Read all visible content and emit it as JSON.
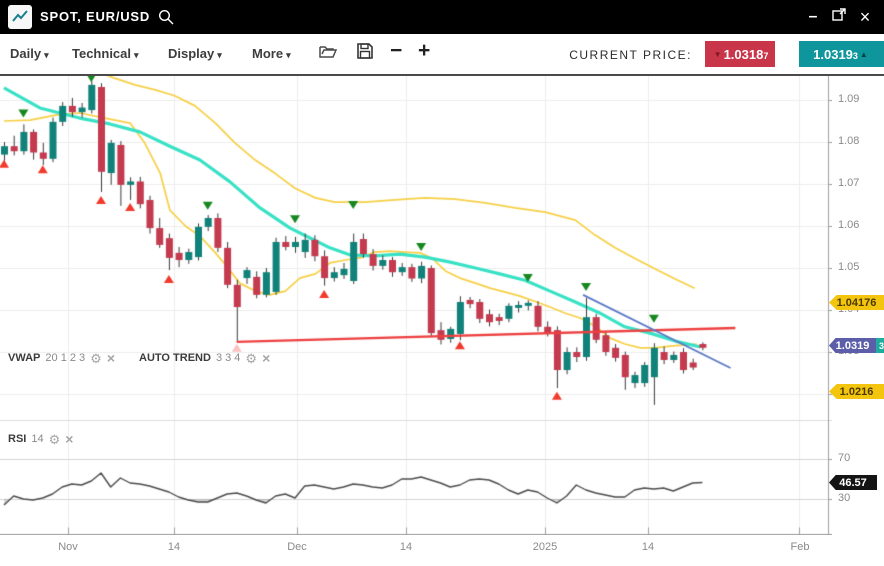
{
  "window": {
    "title": "SPOT, EUR/USD",
    "controls": {
      "minimize": "–",
      "close": "×"
    }
  },
  "ui": {
    "icons": {
      "caret_down": "▾",
      "settings": "⚙",
      "close_small": "×",
      "arrow_down": "▼",
      "arrow_up": "▲"
    },
    "colors": {
      "candle_up": "#10827a",
      "candle_down": "#c43a4e",
      "wick": "#3a3a3a",
      "vwap": "#38e1c5",
      "band": "#f6cf45",
      "trend_red": "#ee4040",
      "trend_blue": "#5b78c7",
      "marker_green": "#17871f",
      "marker_red": "#f2392c",
      "rsi_line": "#4a4a4a",
      "grid": "#ededed",
      "grid_rsi": "#d4d4d4",
      "axis": "#9e9e9e",
      "badge_yellow": "#f3c50f",
      "badge_purple": "#5c5ea9",
      "badge_teal": "#1fae9e",
      "badge_black": "#141414",
      "bid_bg": "#c9364a",
      "ask_bg": "#0f969c"
    }
  },
  "toolbar": {
    "menus": [
      {
        "label": "Daily"
      },
      {
        "label": "Technical"
      },
      {
        "label": "Display"
      },
      {
        "label": "More"
      }
    ],
    "zoom_out": "−",
    "zoom_in": "+",
    "current_price_label": "CURRENT PRICE:",
    "bid": {
      "value": "1.0318",
      "sub": "7"
    },
    "ask": {
      "value": "1.0319",
      "sub": "3"
    }
  },
  "indicators": {
    "vwap": {
      "name": "VWAP",
      "params": "20 1 2 3"
    },
    "autotrend": {
      "name": "AUTO TREND",
      "params": "3 3 4"
    },
    "rsi": {
      "name": "RSI",
      "params": "14"
    }
  },
  "axis_badges": {
    "upper": "1.04176",
    "current": "1.0319",
    "current_sub": "3",
    "lower": "1.0216",
    "rsi": "46.57"
  },
  "chart_data": {
    "type": "candlestick",
    "symbol": "SPOT, EUR/USD",
    "timeframe": "Daily",
    "price_axis": {
      "min": 1.014,
      "max": 1.0948,
      "ticks": [
        1.09,
        1.08,
        1.07,
        1.06,
        1.05,
        1.04,
        1.03,
        1.02
      ],
      "tick_labels": [
        "1.09",
        "1.08",
        "1.07",
        "1.06",
        "1.05",
        "1.04",
        "1.03",
        "1.02"
      ]
    },
    "time_ticks": [
      {
        "label": "Nov",
        "i": 6.6
      },
      {
        "label": "14",
        "i": 17.5
      },
      {
        "label": "Dec",
        "i": 30.2
      },
      {
        "label": "14",
        "i": 41.4
      },
      {
        "label": "2025",
        "i": 55.8
      },
      {
        "label": "14",
        "i": 66.4
      },
      {
        "label": "Feb",
        "i": 82
      }
    ],
    "candles": [
      [
        1.077,
        1.08,
        1.0755,
        1.079
      ],
      [
        1.079,
        1.0815,
        1.0768,
        1.0778
      ],
      [
        1.0778,
        1.0842,
        1.077,
        1.0824
      ],
      [
        1.0824,
        1.083,
        1.0758,
        1.0775
      ],
      [
        1.0775,
        1.0798,
        1.0745,
        1.076
      ],
      [
        1.076,
        1.0858,
        1.0752,
        1.0848
      ],
      [
        1.0848,
        1.0895,
        1.0838,
        1.0886
      ],
      [
        1.0886,
        1.0905,
        1.086,
        1.0871
      ],
      [
        1.0871,
        1.0893,
        1.0858,
        1.0882
      ],
      [
        1.0876,
        1.0945,
        1.0868,
        1.0936
      ],
      [
        1.0931,
        1.094,
        1.0681,
        1.0729
      ],
      [
        1.0726,
        1.0805,
        1.0698,
        1.0798
      ],
      [
        1.0793,
        1.0802,
        1.0648,
        1.0698
      ],
      [
        1.0698,
        1.0716,
        1.0662,
        1.0706
      ],
      [
        1.0706,
        1.0717,
        1.0642,
        1.0652
      ],
      [
        1.0662,
        1.0672,
        1.0582,
        1.0595
      ],
      [
        1.0595,
        1.0619,
        1.0548,
        1.0555
      ],
      [
        1.0571,
        1.0582,
        1.0495,
        1.0524
      ],
      [
        1.0536,
        1.055,
        1.0502,
        1.0519
      ],
      [
        1.0519,
        1.0546,
        1.051,
        1.0538
      ],
      [
        1.0526,
        1.0606,
        1.0518,
        1.0598
      ],
      [
        1.0598,
        1.0626,
        1.0588,
        1.0619
      ],
      [
        1.0619,
        1.063,
        1.0538,
        1.0548
      ],
      [
        1.0548,
        1.0562,
        1.0452,
        1.046
      ],
      [
        1.046,
        1.0472,
        1.0324,
        1.0407
      ],
      [
        1.0476,
        1.0502,
        1.0462,
        1.0495
      ],
      [
        1.0479,
        1.0492,
        1.0428,
        1.0436
      ],
      [
        1.0436,
        1.05,
        1.043,
        1.049
      ],
      [
        1.0443,
        1.0572,
        1.0436,
        1.0562
      ],
      [
        1.0562,
        1.0576,
        1.0542,
        1.055
      ],
      [
        1.055,
        1.0574,
        1.0536,
        1.0562
      ],
      [
        1.0538,
        1.0582,
        1.0524,
        1.0567
      ],
      [
        1.0567,
        1.0578,
        1.0516,
        1.0528
      ],
      [
        1.0528,
        1.0542,
        1.0458,
        1.0476
      ],
      [
        1.0476,
        1.0502,
        1.0468,
        1.049
      ],
      [
        1.0483,
        1.0512,
        1.0474,
        1.0498
      ],
      [
        1.0469,
        1.0582,
        1.0462,
        1.0562
      ],
      [
        1.0569,
        1.0582,
        1.0524,
        1.0533
      ],
      [
        1.0533,
        1.0545,
        1.0494,
        1.0505
      ],
      [
        1.0505,
        1.053,
        1.0496,
        1.0519
      ],
      [
        1.0519,
        1.0526,
        1.0479,
        1.049
      ],
      [
        1.049,
        1.0512,
        1.0481,
        1.0502
      ],
      [
        1.0502,
        1.051,
        1.0467,
        1.0475
      ],
      [
        1.0475,
        1.0515,
        1.0464,
        1.0505
      ],
      [
        1.05,
        1.0506,
        1.0338,
        1.0345
      ],
      [
        1.0352,
        1.0371,
        1.0318,
        1.0329
      ],
      [
        1.0331,
        1.036,
        1.0322,
        1.0355
      ],
      [
        1.0343,
        1.0433,
        1.0328,
        1.0419
      ],
      [
        1.0424,
        1.0431,
        1.0404,
        1.0414
      ],
      [
        1.0419,
        1.0426,
        1.0369,
        1.0379
      ],
      [
        1.039,
        1.0401,
        1.0361,
        1.0371
      ],
      [
        1.0383,
        1.0391,
        1.0364,
        1.0374
      ],
      [
        1.0379,
        1.0416,
        1.0371,
        1.041
      ],
      [
        1.0405,
        1.0421,
        1.0394,
        1.0412
      ],
      [
        1.041,
        1.0423,
        1.0399,
        1.0417
      ],
      [
        1.041,
        1.0421,
        1.0349,
        1.036
      ],
      [
        1.036,
        1.0373,
        1.0337,
        1.0345
      ],
      [
        1.0352,
        1.0361,
        1.0214,
        1.0257
      ],
      [
        1.0257,
        1.0311,
        1.0247,
        1.03
      ],
      [
        1.03,
        1.0311,
        1.0276,
        1.0288
      ],
      [
        1.0288,
        1.0429,
        1.0279,
        1.0383
      ],
      [
        1.0383,
        1.0391,
        1.0321,
        1.0329
      ],
      [
        1.034,
        1.0349,
        1.0291,
        1.03
      ],
      [
        1.031,
        1.0319,
        1.0277,
        1.0286
      ],
      [
        1.0293,
        1.0301,
        1.021,
        1.024
      ],
      [
        1.0226,
        1.0253,
        1.0214,
        1.0245
      ],
      [
        1.0226,
        1.0276,
        1.0217,
        1.0269
      ],
      [
        1.024,
        1.0321,
        1.0174,
        1.031
      ],
      [
        1.03,
        1.0313,
        1.0271,
        1.0281
      ],
      [
        1.0281,
        1.0301,
        1.0274,
        1.0293
      ],
      [
        1.03,
        1.0309,
        1.0249,
        1.0257
      ],
      [
        1.0275,
        1.0284,
        1.0257,
        1.0263
      ],
      [
        1.0319,
        1.0323,
        1.0304,
        1.031
      ]
    ],
    "markers": {
      "green": [
        [
          2,
          1.0868
        ],
        [
          9,
          1.0952
        ],
        [
          21,
          1.0648
        ],
        [
          30,
          1.0616
        ],
        [
          36,
          1.065
        ],
        [
          43,
          1.055
        ],
        [
          54,
          1.0476
        ],
        [
          60,
          1.0455
        ],
        [
          67,
          1.0379
        ]
      ],
      "red": [
        [
          0,
          1.0748
        ],
        [
          4,
          1.0735
        ],
        [
          10,
          1.0662
        ],
        [
          13,
          1.0645
        ],
        [
          17,
          1.0474
        ],
        [
          33,
          1.0438
        ],
        [
          47,
          1.0316
        ],
        [
          57,
          1.0196
        ]
      ],
      "red_faded": [
        [
          24,
          1.031
        ]
      ]
    },
    "vwap_line": [
      [
        0,
        1.0929
      ],
      [
        3.7,
        1.0881
      ],
      [
        7.8,
        1.0857
      ],
      [
        10.9,
        1.0843
      ],
      [
        14,
        1.0824
      ],
      [
        17.1,
        1.079
      ],
      [
        20.2,
        1.0757
      ],
      [
        23.3,
        1.0705
      ],
      [
        26.4,
        1.0643
      ],
      [
        29.5,
        1.0595
      ],
      [
        31.5,
        1.0572
      ],
      [
        33.6,
        1.0548
      ],
      [
        35.7,
        1.0531
      ],
      [
        38.2,
        1.0529
      ],
      [
        40.8,
        1.0533
      ],
      [
        43.4,
        1.0526
      ],
      [
        46,
        1.0514
      ],
      [
        48.6,
        1.05
      ],
      [
        51.1,
        1.0486
      ],
      [
        53.7,
        1.0471
      ],
      [
        56.3,
        1.0445
      ],
      [
        58.9,
        1.0419
      ],
      [
        61.4,
        1.0393
      ],
      [
        64,
        1.036
      ],
      [
        66.6,
        1.0345
      ],
      [
        69.2,
        1.0326
      ],
      [
        71.8,
        1.0312
      ]
    ],
    "band_upper": [
      [
        5.3,
        1.0964
      ],
      [
        7.3,
        1.0976
      ],
      [
        9.4,
        1.0969
      ],
      [
        11.4,
        1.0952
      ],
      [
        13.5,
        1.0936
      ],
      [
        15.6,
        1.0924
      ],
      [
        17.6,
        1.091
      ],
      [
        19.7,
        1.0886
      ],
      [
        21.8,
        1.0845
      ],
      [
        23.8,
        1.0798
      ],
      [
        25.9,
        1.0757
      ],
      [
        27.9,
        1.0726
      ],
      [
        30,
        1.069
      ],
      [
        32.1,
        1.0667
      ],
      [
        34.1,
        1.0657
      ],
      [
        37.2,
        1.0657
      ],
      [
        40.3,
        1.0662
      ],
      [
        43.4,
        1.0667
      ],
      [
        46.5,
        1.0664
      ],
      [
        49.6,
        1.0655
      ],
      [
        52.7,
        1.0643
      ],
      [
        55.8,
        1.0633
      ],
      [
        58.9,
        1.0614
      ],
      [
        60.9,
        1.0579
      ],
      [
        63,
        1.0548
      ],
      [
        65.1,
        1.0522
      ],
      [
        67.1,
        1.0498
      ],
      [
        69.2,
        1.0474
      ],
      [
        71.2,
        1.0452
      ]
    ],
    "band_lower": [
      [
        0,
        1.085
      ],
      [
        2.7,
        1.0852
      ],
      [
        5.3,
        1.0864
      ],
      [
        7.8,
        1.0869
      ],
      [
        10.4,
        1.0857
      ],
      [
        13,
        1.0845
      ],
      [
        14.5,
        1.0798
      ],
      [
        16.1,
        1.0726
      ],
      [
        17.1,
        1.0638
      ],
      [
        18.7,
        1.06
      ],
      [
        20.2,
        1.0576
      ],
      [
        21.8,
        1.0536
      ],
      [
        23.1,
        1.05
      ],
      [
        24.3,
        1.0464
      ],
      [
        25.9,
        1.0445
      ],
      [
        27.4,
        1.0436
      ],
      [
        29,
        1.0445
      ],
      [
        30.5,
        1.0476
      ],
      [
        32.1,
        1.0486
      ],
      [
        33.6,
        1.0512
      ],
      [
        35.2,
        1.0519
      ],
      [
        36.7,
        1.0524
      ],
      [
        38.2,
        1.0538
      ],
      [
        39.8,
        1.054
      ],
      [
        41.3,
        1.0538
      ],
      [
        42.9,
        1.0536
      ],
      [
        44.1,
        1.0524
      ],
      [
        45.5,
        1.0493
      ],
      [
        47,
        1.0476
      ],
      [
        48.6,
        1.0464
      ],
      [
        50.1,
        1.0452
      ],
      [
        51.6,
        1.0443
      ],
      [
        53.2,
        1.0433
      ],
      [
        54.7,
        1.0421
      ],
      [
        56.3,
        1.0407
      ],
      [
        57.8,
        1.0393
      ],
      [
        59.4,
        1.0381
      ],
      [
        60.9,
        1.0362
      ],
      [
        62.5,
        1.0333
      ],
      [
        64,
        1.0319
      ],
      [
        65.6,
        1.031
      ],
      [
        67.1,
        1.031
      ],
      [
        68.7,
        1.0314
      ],
      [
        70.2,
        1.0317
      ],
      [
        71.4,
        1.0319
      ]
    ],
    "auto_trend": {
      "red": [
        [
          24,
          1.0324
        ],
        [
          75.4,
          1.0357
        ]
      ],
      "blue": [
        [
          59.7,
          1.0436
        ],
        [
          74.9,
          1.0262
        ]
      ]
    },
    "rsi": {
      "period": 14,
      "overbought": 70,
      "oversold": 30,
      "last": 46.57,
      "values": [
        24,
        33,
        30,
        29,
        31,
        35,
        42,
        45,
        44,
        48,
        56,
        42,
        51,
        46,
        45,
        43,
        40,
        37,
        32,
        29,
        27,
        27,
        31,
        35,
        36,
        33,
        29,
        26,
        33,
        35,
        31,
        43,
        44,
        42,
        40,
        42,
        45,
        44,
        42,
        41,
        44,
        50,
        50,
        52,
        49,
        46,
        42,
        44,
        49,
        50,
        49,
        45,
        39,
        35,
        39,
        37,
        31,
        26,
        33,
        44,
        39,
        36,
        34,
        32,
        32,
        39,
        41,
        40,
        41,
        38,
        42,
        46,
        46.57
      ]
    },
    "axis_badge_values": {
      "upper": 1.04176,
      "current": 1.0319,
      "lower": 1.0216
    }
  }
}
